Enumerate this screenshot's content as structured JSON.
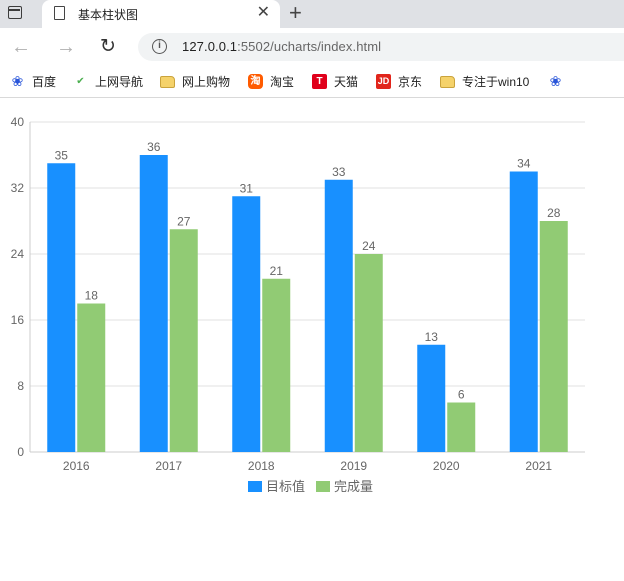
{
  "browser": {
    "tab_title": "基本柱状图",
    "url_host": "127.0.0.1",
    "url_rest": ":5502/ucharts/index.html",
    "bookmarks": [
      {
        "label": "百度",
        "icon": "paw-icon"
      },
      {
        "label": "上网导航",
        "icon": "hao-icon"
      },
      {
        "label": "网上购物",
        "icon": "folder-icon"
      },
      {
        "label": "淘宝",
        "icon": "taobao-icon"
      },
      {
        "label": "天猫",
        "icon": "tmall-icon"
      },
      {
        "label": "京东",
        "icon": "jd-icon"
      },
      {
        "label": "专注于win10",
        "icon": "folder-icon"
      },
      {
        "label": "",
        "icon": "paw-icon"
      }
    ]
  },
  "chart_data": {
    "type": "bar",
    "categories": [
      "2016",
      "2017",
      "2018",
      "2019",
      "2020",
      "2021"
    ],
    "series": [
      {
        "name": "目标值",
        "values": [
          35,
          36,
          31,
          33,
          13,
          34
        ],
        "color": "#1890FF"
      },
      {
        "name": "完成量",
        "values": [
          18,
          27,
          21,
          24,
          6,
          28
        ],
        "color": "#91CB74"
      }
    ],
    "ylim": [
      0,
      40
    ],
    "yticks": [
      "0",
      "8",
      "16",
      "24",
      "32",
      "40"
    ],
    "grid": true,
    "legend_position": "bottom",
    "data_labels": true
  }
}
